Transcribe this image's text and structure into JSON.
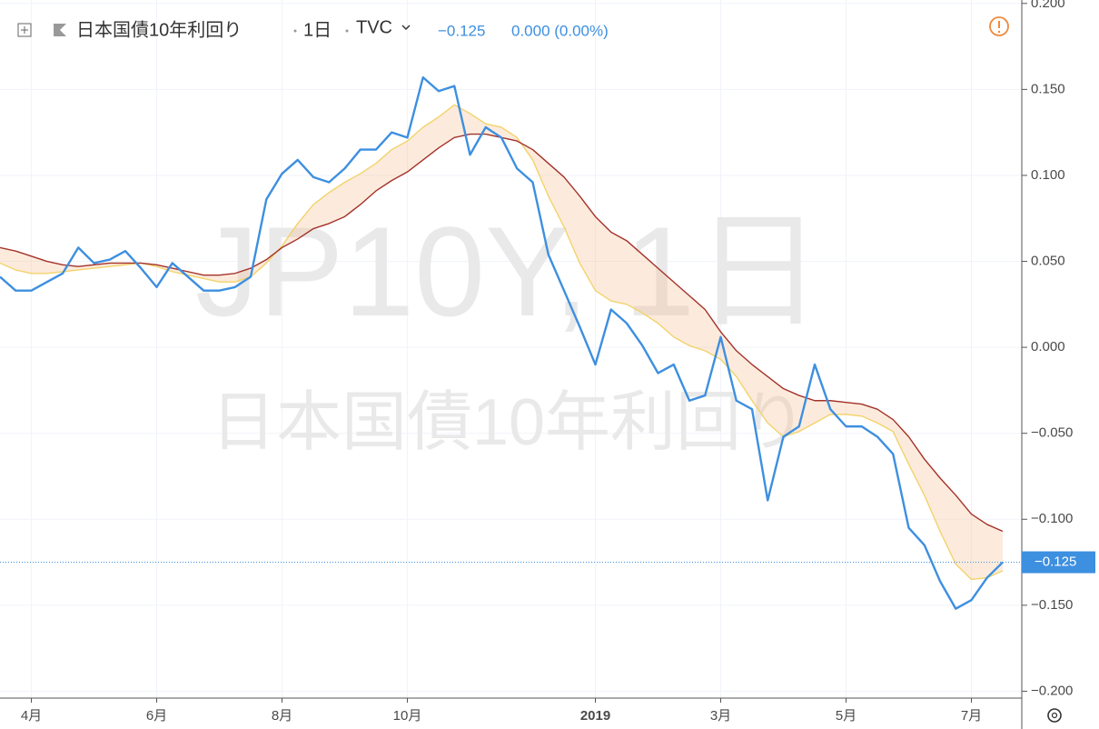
{
  "chart_data": {
    "type": "line",
    "title": "日本国債10年利回り",
    "interval": "1日",
    "source": "TVC",
    "last_value": -0.125,
    "last_value_label": "−0.125",
    "change_label": "0.000 (0.00%)",
    "watermark_symbol": "JP10Y, 1日",
    "categories": [
      null,
      null,
      "4月",
      null,
      null,
      null,
      null,
      null,
      null,
      null,
      "6月",
      null,
      null,
      null,
      null,
      null,
      null,
      null,
      "8月",
      null,
      null,
      null,
      null,
      null,
      null,
      null,
      "10月",
      null,
      null,
      null,
      null,
      null,
      null,
      null,
      null,
      null,
      null,
      null,
      "2019",
      null,
      null,
      null,
      null,
      null,
      null,
      null,
      "3月",
      null,
      null,
      null,
      null,
      null,
      null,
      null,
      "5月",
      null,
      null,
      null,
      null,
      null,
      null,
      null,
      "7月",
      null,
      null
    ],
    "series": [
      {
        "name": "日本国債10年利回り",
        "color": "#3d8fe0",
        "values": [
          0.041,
          0.033,
          0.033,
          0.038,
          0.043,
          0.058,
          0.049,
          0.051,
          0.056,
          0.046,
          0.035,
          0.049,
          0.041,
          0.033,
          0.033,
          0.035,
          0.041,
          0.086,
          0.101,
          0.109,
          0.099,
          0.096,
          0.104,
          0.115,
          0.115,
          0.125,
          0.122,
          0.157,
          0.149,
          0.152,
          0.112,
          0.128,
          0.122,
          0.104,
          0.096,
          0.054,
          0.033,
          0.012,
          -0.01,
          0.022,
          0.014,
          0.001,
          -0.015,
          -0.01,
          -0.031,
          -0.028,
          0.006,
          -0.031,
          -0.036,
          -0.089,
          -0.052,
          -0.046,
          -0.01,
          -0.036,
          -0.046,
          -0.046,
          -0.052,
          -0.062,
          -0.105,
          -0.115,
          -0.136,
          -0.152,
          -0.147,
          -0.134,
          -0.125
        ]
      },
      {
        "color": "#f2d36b",
        "values": [
          0.049,
          0.045,
          0.043,
          0.043,
          0.044,
          0.045,
          0.046,
          0.047,
          0.048,
          0.049,
          0.047,
          0.044,
          0.042,
          0.04,
          0.038,
          0.038,
          0.041,
          0.049,
          0.059,
          0.072,
          0.083,
          0.09,
          0.096,
          0.101,
          0.107,
          0.115,
          0.12,
          0.128,
          0.134,
          0.141,
          0.136,
          0.13,
          0.128,
          0.122,
          0.109,
          0.088,
          0.07,
          0.049,
          0.033,
          0.027,
          0.025,
          0.02,
          0.014,
          0.006,
          0.001,
          -0.002,
          -0.007,
          -0.017,
          -0.031,
          -0.044,
          -0.052,
          -0.049,
          -0.044,
          -0.039,
          -0.039,
          -0.04,
          -0.044,
          -0.049,
          -0.068,
          -0.086,
          -0.107,
          -0.126,
          -0.135,
          -0.134,
          -0.13
        ]
      },
      {
        "color": "#a3322a",
        "values": [
          0.058,
          0.056,
          0.053,
          0.05,
          0.048,
          0.047,
          0.048,
          0.049,
          0.049,
          0.049,
          0.048,
          0.046,
          0.044,
          0.042,
          0.042,
          0.043,
          0.046,
          0.051,
          0.058,
          0.063,
          0.069,
          0.072,
          0.076,
          0.083,
          0.091,
          0.097,
          0.102,
          0.109,
          0.116,
          0.122,
          0.124,
          0.124,
          0.122,
          0.12,
          0.115,
          0.107,
          0.099,
          0.088,
          0.076,
          0.067,
          0.062,
          0.054,
          0.046,
          0.038,
          0.03,
          0.022,
          0.009,
          -0.002,
          -0.01,
          -0.017,
          -0.024,
          -0.028,
          -0.031,
          -0.031,
          -0.032,
          -0.033,
          -0.036,
          -0.042,
          -0.052,
          -0.065,
          -0.076,
          -0.086,
          -0.097,
          -0.103,
          -0.107
        ]
      }
    ],
    "ylim": [
      -0.204,
      0.202
    ],
    "yticks": [
      {
        "value": 0.2,
        "label": "0.200"
      },
      {
        "value": 0.15,
        "label": "0.150"
      },
      {
        "value": 0.1,
        "label": "0.100"
      },
      {
        "value": 0.05,
        "label": "0.050"
      },
      {
        "value": 0,
        "label": "0.000"
      },
      {
        "value": -0.05,
        "label": "−0.050"
      },
      {
        "value": -0.1,
        "label": "−0.100"
      },
      {
        "value": -0.15,
        "label": "−0.150"
      },
      {
        "value": -0.2,
        "label": "−0.200"
      }
    ],
    "grid": true
  }
}
